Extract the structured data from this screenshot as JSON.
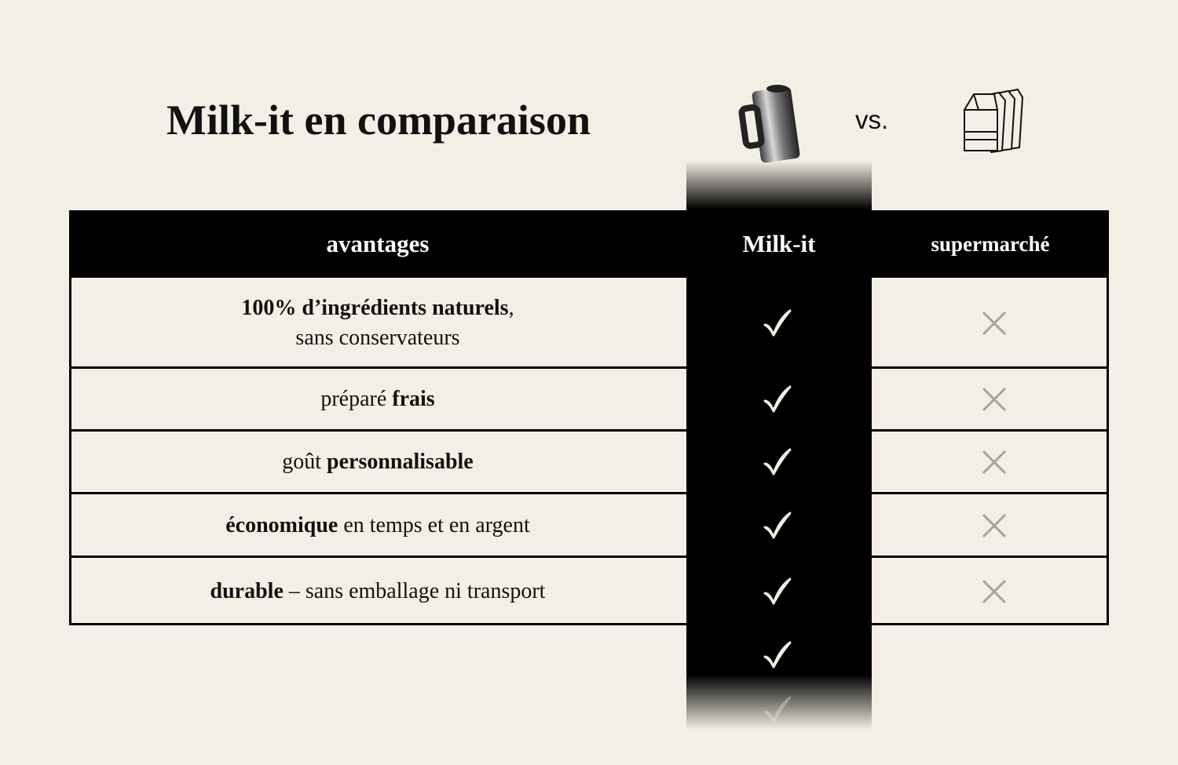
{
  "title": "Milk-it en comparaison",
  "vs": "vs.",
  "header": [
    "avantages",
    "Milk-it",
    "supermarché"
  ],
  "rows": [
    [
      [
        {
          "text": "100% d’ingrédients naturels",
          "bold": true
        },
        {
          "text": ","
        }
      ],
      [
        {
          "text": "sans conservateurs"
        }
      ]
    ],
    [
      [
        {
          "text": "préparé "
        },
        {
          "text": "frais",
          "bold": true
        }
      ]
    ],
    [
      [
        {
          "text": "goût "
        },
        {
          "text": "personnalisable",
          "bold": true
        }
      ]
    ],
    [
      [
        {
          "text": "économique",
          "bold": true
        },
        {
          "text": " en temps et en argent"
        }
      ]
    ],
    [
      [
        {
          "text": "durable",
          "bold": true
        },
        {
          "text": " – sans emballage ni transport"
        }
      ]
    ]
  ]
}
